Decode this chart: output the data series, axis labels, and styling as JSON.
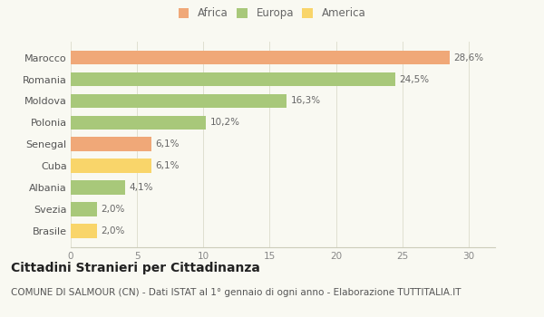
{
  "categories": [
    "Brasile",
    "Svezia",
    "Albania",
    "Cuba",
    "Senegal",
    "Polonia",
    "Moldova",
    "Romania",
    "Marocco"
  ],
  "values": [
    2.0,
    2.0,
    4.1,
    6.1,
    6.1,
    10.2,
    16.3,
    24.5,
    28.6
  ],
  "colors": [
    "#f9d56a",
    "#a8c87a",
    "#a8c87a",
    "#f9d56a",
    "#f0a878",
    "#a8c87a",
    "#a8c87a",
    "#a8c87a",
    "#f0a878"
  ],
  "labels": [
    "2,0%",
    "2,0%",
    "4,1%",
    "6,1%",
    "6,1%",
    "10,2%",
    "16,3%",
    "24,5%",
    "28,6%"
  ],
  "legend": [
    {
      "label": "Africa",
      "color": "#f0a878"
    },
    {
      "label": "Europa",
      "color": "#a8c87a"
    },
    {
      "label": "America",
      "color": "#f9d56a"
    }
  ],
  "xlim": [
    0,
    32
  ],
  "xticks": [
    0,
    5,
    10,
    15,
    20,
    25,
    30
  ],
  "title": "Cittadini Stranieri per Cittadinanza",
  "subtitle": "COMUNE DI SALMOUR (CN) - Dati ISTAT al 1° gennaio di ogni anno - Elaborazione TUTTITALIA.IT",
  "bg_color": "#f9f9f2",
  "bar_height": 0.65,
  "title_fontsize": 10,
  "subtitle_fontsize": 7.5,
  "label_fontsize": 7.5,
  "ytick_fontsize": 8,
  "xtick_fontsize": 7.5
}
